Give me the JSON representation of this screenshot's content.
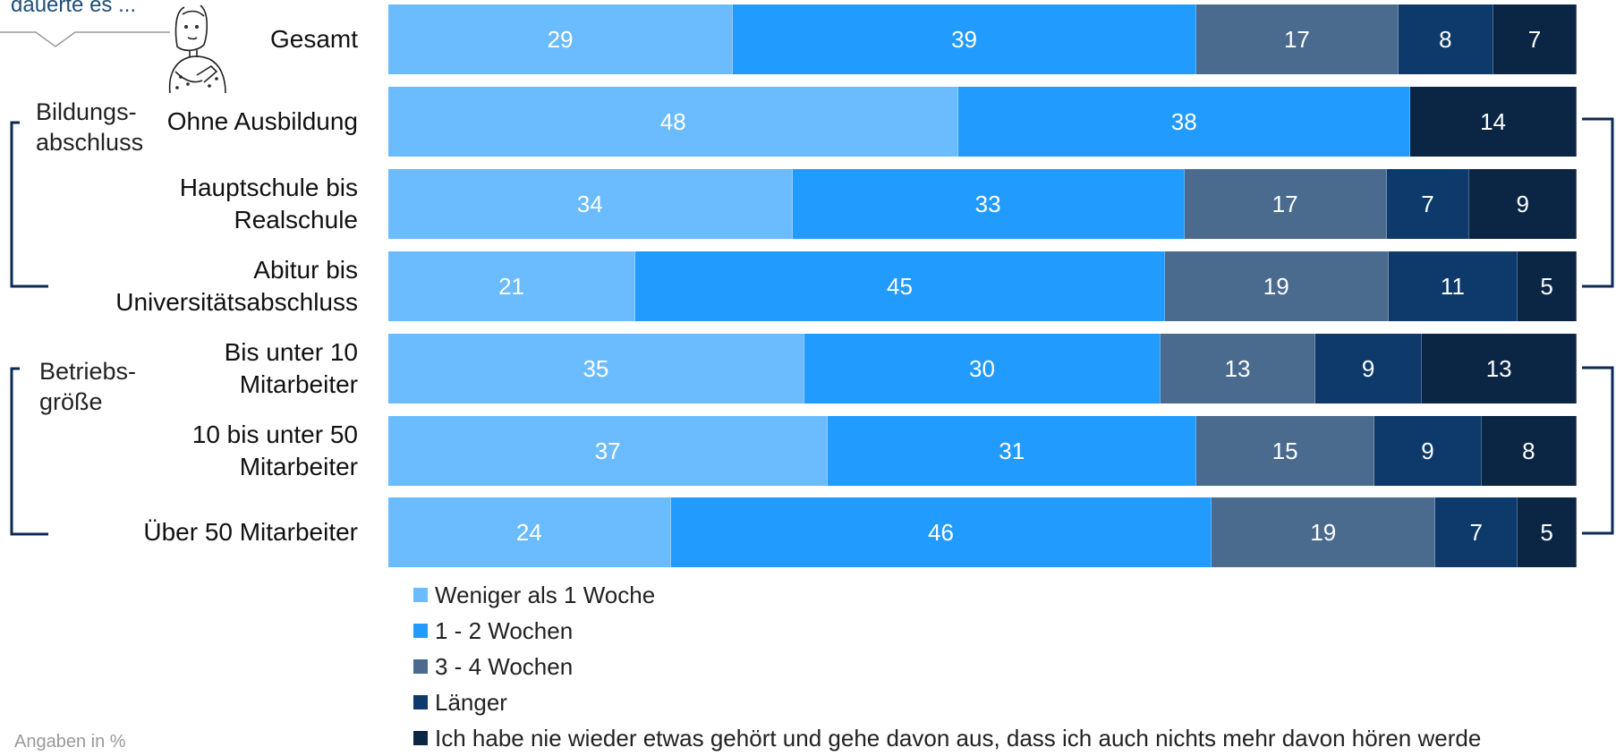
{
  "callout": {
    "text": "dauerte es ..."
  },
  "footnote": "Angaben in %",
  "groups": {
    "bildung": "Bildungs-\nabschluss",
    "betrieb": "Betriebs-\ngröße"
  },
  "colors": [
    "#6bbcff",
    "#229bff",
    "#4a6a8e",
    "#0d3a6a",
    "#0b2644"
  ],
  "chart_data": {
    "type": "bar",
    "orientation": "horizontal",
    "stacked": true,
    "categories": [
      "Gesamt",
      "Ohne Ausbildung",
      "Hauptschule bis\nRealschule",
      "Abitur bis\nUniversitätsabschluss",
      "Bis unter 10\nMitarbeiter",
      "10 bis unter 50\nMitarbeiter",
      "Über 50 Mitarbeiter"
    ],
    "series": [
      {
        "name": "Weniger als 1 Woche",
        "values": [
          29,
          48,
          34,
          21,
          35,
          37,
          24
        ]
      },
      {
        "name": "1 - 2 Wochen",
        "values": [
          39,
          38,
          33,
          45,
          30,
          31,
          46
        ]
      },
      {
        "name": "3 - 4 Wochen",
        "values": [
          17,
          0,
          17,
          19,
          13,
          15,
          19
        ]
      },
      {
        "name": "Länger",
        "values": [
          8,
          0,
          7,
          11,
          9,
          9,
          7
        ]
      },
      {
        "name": "Ich habe nie wieder etwas gehört und gehe davon aus, dass ich auch nichts mehr davon hören werde",
        "values": [
          7,
          14,
          9,
          5,
          13,
          8,
          5
        ]
      }
    ],
    "legend_position": "bottom-left"
  }
}
